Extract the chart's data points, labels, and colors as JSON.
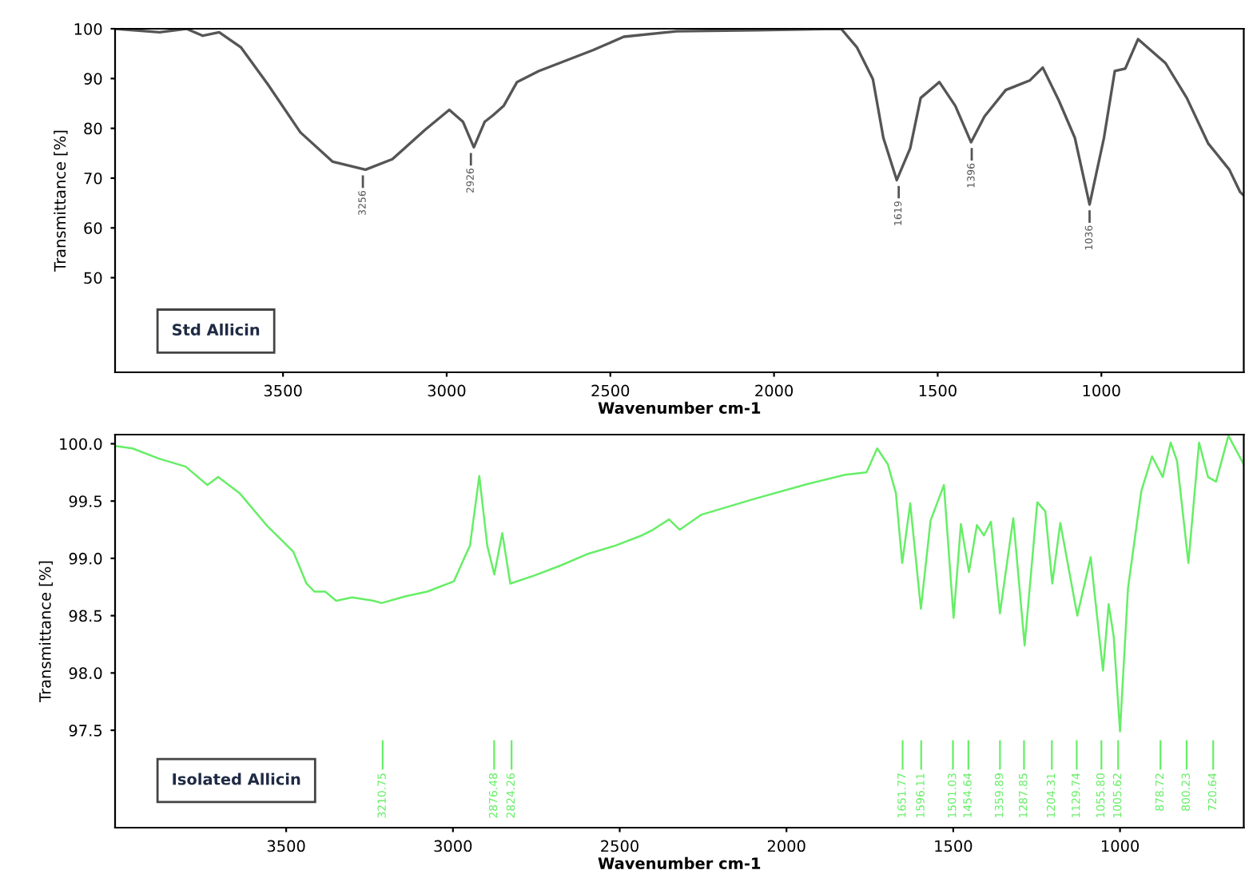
{
  "chart_data": [
    {
      "type": "line",
      "xlabel": "Wavenumber cm-1",
      "ylabel": "Transmittance [%]",
      "xlim": [
        4013,
        565
      ],
      "ylim": [
        31,
        100
      ],
      "xticks": [
        3500,
        3000,
        2500,
        2000,
        1500,
        1000
      ],
      "yticks": [
        50,
        60,
        70,
        80,
        90,
        100
      ],
      "grid": false,
      "legend": false,
      "series": [
        {
          "color": "#555555",
          "x": [
            4013,
            3877,
            3795,
            3745,
            3695,
            3629,
            3546,
            3447,
            3348,
            3248,
            3166,
            3066,
            2992,
            2950,
            2917,
            2884,
            2859,
            2826,
            2785,
            2719,
            2553,
            2459,
            2297,
            2054,
            1795,
            1747,
            1698,
            1666,
            1625,
            1584,
            1552,
            1495,
            1446,
            1398,
            1357,
            1292,
            1219,
            1179,
            1130,
            1081,
            1036,
            992,
            959,
            927,
            888,
            804,
            739,
            674,
            609,
            576,
            565
          ],
          "values": [
            100,
            99.3,
            100,
            98.6,
            99.3,
            96.3,
            88.8,
            79.2,
            73.3,
            71.7,
            73.8,
            79.7,
            83.7,
            81.3,
            76.2,
            81.3,
            82.6,
            84.5,
            89.3,
            91.5,
            95.7,
            98.4,
            99.5,
            99.7,
            100,
            96.3,
            89.9,
            78.1,
            69.6,
            76.0,
            86.1,
            89.3,
            84.5,
            77.2,
            82.4,
            87.7,
            89.6,
            92.2,
            85.6,
            78.1,
            64.7,
            78.1,
            91.5,
            92.0,
            97.9,
            93.1,
            86.1,
            77.0,
            71.7,
            67.2,
            66.5
          ]
        }
      ],
      "annotations": [
        {
          "text": "3256",
          "x": 3256,
          "y": 71.7
        },
        {
          "text": "2926",
          "x": 2926,
          "y": 76.2
        },
        {
          "text": "1619",
          "x": 1619,
          "y": 69.6
        },
        {
          "text": "1396",
          "x": 1396,
          "y": 77.2
        },
        {
          "text": "1036",
          "x": 1036,
          "y": 64.7
        },
        "Std Allicin"
      ]
    },
    {
      "type": "line",
      "xlabel": "Wavenumber cm-1",
      "ylabel": "Transmittance [%]",
      "xlim": [
        4013,
        629
      ],
      "ylim": [
        96.65,
        100.08
      ],
      "xticks": [
        3500,
        3000,
        2500,
        2000,
        1500,
        1000
      ],
      "yticks": [
        {
          "value": 97.5,
          "label": "97.5"
        },
        {
          "value": 98,
          "label": "98.0"
        },
        {
          "value": 98.5,
          "label": "98.5"
        },
        {
          "value": 99,
          "label": "99.0"
        },
        {
          "value": 99.5,
          "label": "99.5"
        },
        {
          "value": 100,
          "label": "100.0"
        }
      ],
      "grid": false,
      "legend": false,
      "series": [
        {
          "color": "#66ee66",
          "x": [
            4013,
            3961,
            3881,
            3801,
            3736,
            3704,
            3640,
            3559,
            3479,
            3439,
            3415,
            3383,
            3350,
            3302,
            3238,
            3214,
            3141,
            3077,
            2997,
            2965,
            2949,
            2921,
            2897,
            2876,
            2852,
            2828,
            2756,
            2675,
            2595,
            2514,
            2434,
            2400,
            2352,
            2320,
            2256,
            2096,
            1936,
            1824,
            1760,
            1728,
            1696,
            1672,
            1653,
            1629,
            1597,
            1568,
            1528,
            1499,
            1477,
            1453,
            1429,
            1408,
            1387,
            1360,
            1320,
            1286,
            1248,
            1224,
            1203,
            1179,
            1128,
            1088,
            1051,
            1034,
            1019,
            1000,
            976,
            936,
            904,
            872,
            848,
            829,
            795,
            763,
            736,
            712,
            675,
            629
          ],
          "values": [
            99.98,
            99.96,
            99.87,
            99.8,
            99.64,
            99.71,
            99.57,
            99.29,
            99.06,
            98.78,
            98.71,
            98.71,
            98.63,
            98.66,
            98.63,
            98.61,
            98.67,
            98.71,
            98.8,
            99.01,
            99.11,
            99.72,
            99.11,
            98.86,
            99.22,
            98.78,
            98.85,
            98.94,
            99.04,
            99.11,
            99.2,
            99.25,
            99.34,
            99.25,
            99.38,
            99.52,
            99.65,
            99.73,
            99.75,
            99.96,
            99.82,
            99.57,
            98.96,
            99.48,
            98.56,
            99.33,
            99.64,
            98.48,
            99.3,
            98.88,
            99.29,
            99.2,
            99.32,
            98.52,
            99.35,
            98.24,
            99.49,
            99.41,
            98.78,
            99.31,
            98.5,
            99.01,
            98.02,
            98.6,
            98.32,
            97.49,
            98.74,
            99.59,
            99.89,
            99.71,
            100.01,
            99.85,
            98.96,
            100.01,
            99.71,
            99.67,
            100.07,
            99.82
          ]
        }
      ],
      "ref_lines": [
        {
          "axis": "x",
          "value": 3210.75,
          "label": "3210.75",
          "color": "#66ee66"
        },
        {
          "axis": "x",
          "value": 2876.48,
          "label": "2876.48",
          "color": "#66ee66"
        },
        {
          "axis": "x",
          "value": 2824.26,
          "label": "2824.26",
          "color": "#66ee66"
        },
        {
          "axis": "x",
          "value": 1651.77,
          "label": "1651.77",
          "color": "#66ee66"
        },
        {
          "axis": "x",
          "value": 1596.11,
          "label": "1596.11",
          "color": "#66ee66"
        },
        {
          "axis": "x",
          "value": 1501.03,
          "label": "1501.03",
          "color": "#66ee66"
        },
        {
          "axis": "x",
          "value": 1454.64,
          "label": "1454.64",
          "color": "#66ee66"
        },
        {
          "axis": "x",
          "value": 1359.89,
          "label": "1359.89",
          "color": "#66ee66"
        },
        {
          "axis": "x",
          "value": 1287.85,
          "label": "1287.85",
          "color": "#66ee66"
        },
        {
          "axis": "x",
          "value": 1204.31,
          "label": "1204.31",
          "color": "#66ee66"
        },
        {
          "axis": "x",
          "value": 1129.74,
          "label": "1129.74",
          "color": "#66ee66"
        },
        {
          "axis": "x",
          "value": 1055.8,
          "label": "1055.80",
          "color": "#66ee66"
        },
        {
          "axis": "x",
          "value": 1005.62,
          "label": "1005.62",
          "color": "#66ee66"
        },
        {
          "axis": "x",
          "value": 878.72,
          "label": "878.72",
          "color": "#66ee66"
        },
        {
          "axis": "x",
          "value": 800.23,
          "label": "800.23",
          "color": "#66ee66"
        },
        {
          "axis": "x",
          "value": 720.64,
          "label": "720.64",
          "color": "#66ee66"
        }
      ],
      "annotations": [
        "Isolated Allicin"
      ]
    }
  ]
}
